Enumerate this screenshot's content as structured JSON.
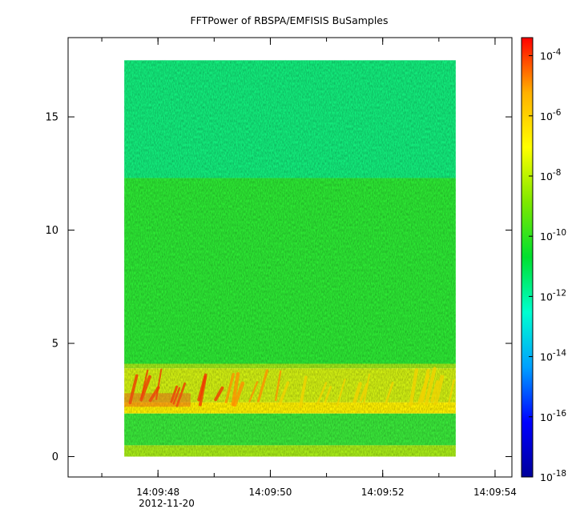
{
  "chart_data": {
    "type": "heatmap",
    "title": "FFTPower of RBSPA/EMFISIS  BuSamples",
    "xlabel": "",
    "ylabel": "",
    "x_range": [
      "14:09:46.400",
      "14:09:54.300"
    ],
    "x_data_extent": [
      "14:09:47.4",
      "14:09:53.3"
    ],
    "x_ticks": [
      {
        "value": "14:09:48",
        "label": "14:09:48"
      },
      {
        "value": "14:09:50",
        "label": "14:09:50"
      },
      {
        "value": "14:09:52",
        "label": "14:09:52"
      },
      {
        "value": "14:09:54",
        "label": "14:09:54"
      }
    ],
    "x_date_label": "2012-11-20",
    "ylim": [
      -0.9,
      18.5
    ],
    "y_data_extent": [
      0,
      17.5
    ],
    "y_ticks": [
      0,
      5,
      10,
      15
    ],
    "colorbar": {
      "scale": "log",
      "range_exponent": [
        -18,
        -3.4
      ],
      "ticks": [
        {
          "base": "10",
          "exp": "-4"
        },
        {
          "base": "10",
          "exp": "-6"
        },
        {
          "base": "10",
          "exp": "-8"
        },
        {
          "base": "10",
          "exp": "-10"
        },
        {
          "base": "10",
          "exp": "-12"
        },
        {
          "base": "10",
          "exp": "-14"
        },
        {
          "base": "10",
          "exp": "-16"
        },
        {
          "base": "10",
          "exp": "-18"
        }
      ],
      "colormap": [
        "#00009a",
        "#0000ff",
        "#00a0ff",
        "#00ffd0",
        "#00e030",
        "#7ee800",
        "#ffff00",
        "#ffb000",
        "#ff0000"
      ]
    },
    "regions": [
      {
        "y": [
          12.3,
          17.5
        ],
        "log_power": -12.6,
        "color": "#13ec7c"
      },
      {
        "y": [
          4.1,
          12.3
        ],
        "log_power": -10.6,
        "color": "#2de834"
      },
      {
        "y": [
          3.9,
          4.1
        ],
        "log_power": -9.3,
        "color": "#9ee81a"
      },
      {
        "y": [
          2.4,
          3.9
        ],
        "log_power": -8.6,
        "color": "#d2f012"
      },
      {
        "y": [
          1.9,
          2.4
        ],
        "log_power": -8.2,
        "color": "#fff200"
      },
      {
        "y": [
          0.5,
          1.9
        ],
        "log_power": -10.5,
        "color": "#3ae83a"
      },
      {
        "y": [
          0.0,
          0.5
        ],
        "log_power": -9.4,
        "color": "#a8ec18"
      }
    ]
  }
}
